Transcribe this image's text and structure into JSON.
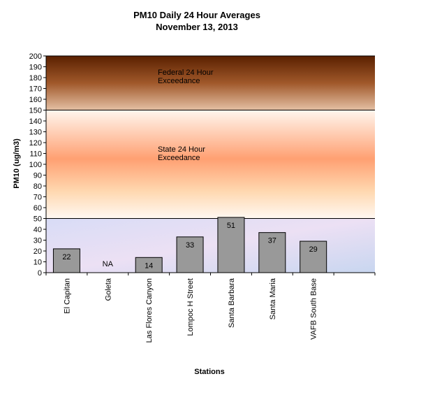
{
  "chart_data": {
    "type": "bar",
    "title": [
      "PM10 Daily 24 Hour Averages",
      "November 13, 2013"
    ],
    "xlabel": "Stations",
    "ylabel": "PM10 (ug/m3)",
    "ylim": [
      0,
      200
    ],
    "ytick_step": 10,
    "categories": [
      "El Capitan",
      "Goleta",
      "Las Flores Canyon",
      "Lompoc H Street",
      "Santa Barbara",
      "Santa Maria",
      "VAFB South Base"
    ],
    "values": [
      22,
      null,
      14,
      33,
      51,
      37,
      29
    ],
    "value_labels": [
      "22",
      "NA",
      "14",
      "33",
      "51",
      "37",
      "29"
    ],
    "bar_color": "#999999",
    "bands": [
      {
        "name": "standard",
        "from": 0,
        "to": 50,
        "label": [
          "",
          ""
        ],
        "colors": [
          "#e6e6f8",
          "#c8d4f0"
        ]
      },
      {
        "name": "state",
        "from": 50,
        "to": 150,
        "label": [
          "State 24 Hour",
          "Exceedance"
        ],
        "colors": [
          "#fff8ef",
          "#ffa070"
        ]
      },
      {
        "name": "federal",
        "from": 150,
        "to": 200,
        "label": [
          "Federal 24 Hour",
          "Exceedance"
        ],
        "colors": [
          "#5a2000",
          "#e0b898"
        ]
      }
    ]
  }
}
